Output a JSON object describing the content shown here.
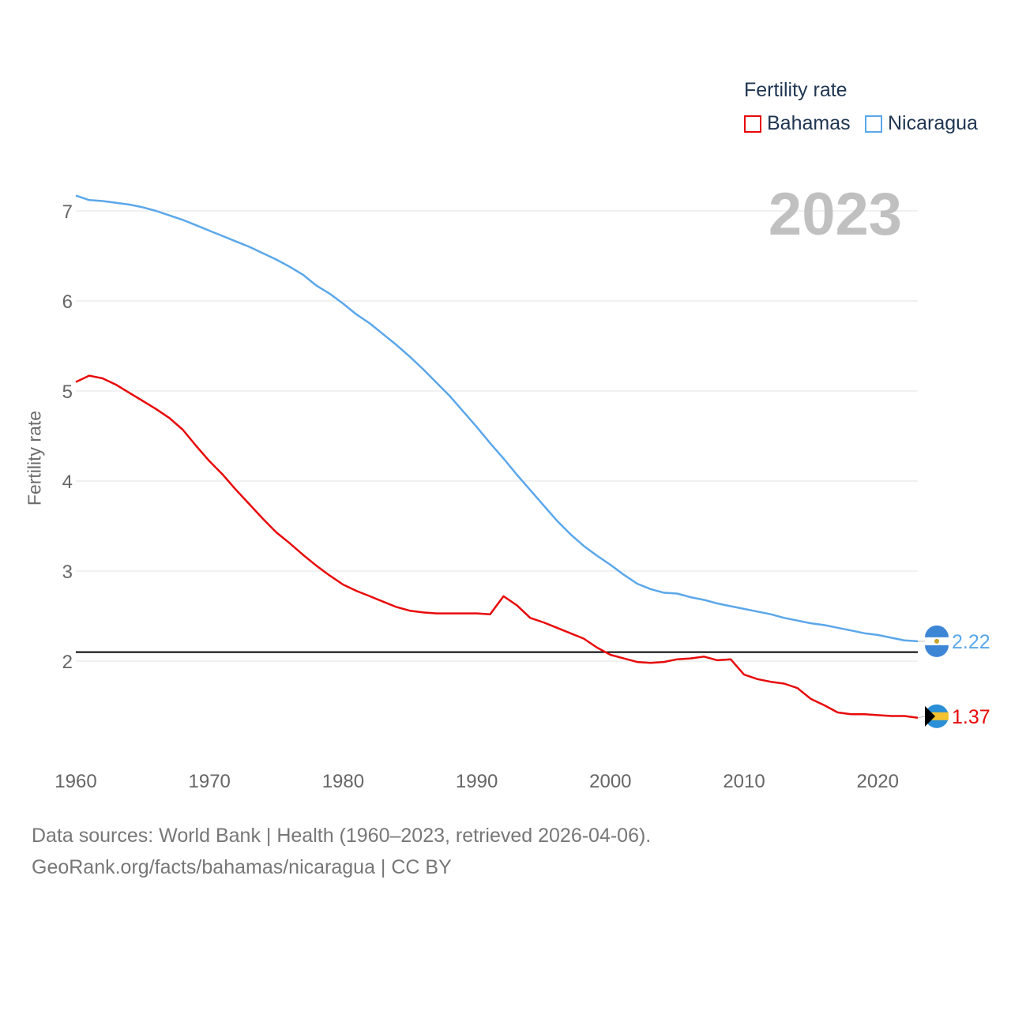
{
  "legend": {
    "title": "Fertility rate",
    "items": [
      {
        "label": "Bahamas",
        "color": "#e8090a"
      },
      {
        "label": "Nicaragua",
        "color": "#5ba7ea"
      }
    ]
  },
  "year_label": "2023",
  "y_axis_title": "Fertility rate",
  "footer": {
    "line1": "Data sources: World Bank | Health (1960–2023, retrieved 2026-04-06).",
    "line2": "GeoRank.org/facts/bahamas/nicaragua | CC BY"
  },
  "chart_data": {
    "type": "line",
    "title": "Fertility rate",
    "xlabel": "",
    "ylabel": "Fertility rate",
    "xlim": [
      1960,
      2023
    ],
    "ylim": [
      1.0,
      7.4
    ],
    "x_ticks": [
      1960,
      1970,
      1980,
      1990,
      2000,
      2010,
      2020
    ],
    "y_ticks": [
      2,
      3,
      4,
      5,
      6,
      7
    ],
    "grid": true,
    "legend_position": "top-right",
    "reference_line": {
      "y": 2.1,
      "color": "#000000"
    },
    "x": [
      1960,
      1961,
      1962,
      1963,
      1964,
      1965,
      1966,
      1967,
      1968,
      1969,
      1970,
      1971,
      1972,
      1973,
      1974,
      1975,
      1976,
      1977,
      1978,
      1979,
      1980,
      1981,
      1982,
      1983,
      1984,
      1985,
      1986,
      1987,
      1988,
      1989,
      1990,
      1991,
      1992,
      1993,
      1994,
      1995,
      1996,
      1997,
      1998,
      1999,
      2000,
      2001,
      2002,
      2003,
      2004,
      2005,
      2006,
      2007,
      2008,
      2009,
      2010,
      2011,
      2012,
      2013,
      2014,
      2015,
      2016,
      2017,
      2018,
      2019,
      2020,
      2021,
      2022,
      2023
    ],
    "series": [
      {
        "name": "Bahamas",
        "color": "#e8090a",
        "end_label": "1.37",
        "values": [
          5.1,
          5.17,
          5.14,
          5.07,
          4.98,
          4.89,
          4.8,
          4.7,
          4.57,
          4.39,
          4.22,
          4.07,
          3.9,
          3.74,
          3.58,
          3.43,
          3.31,
          3.18,
          3.06,
          2.95,
          2.85,
          2.78,
          2.72,
          2.66,
          2.6,
          2.56,
          2.54,
          2.53,
          2.53,
          2.53,
          2.53,
          2.52,
          2.72,
          2.62,
          2.48,
          2.43,
          2.37,
          2.31,
          2.25,
          2.15,
          2.07,
          2.03,
          1.99,
          1.98,
          1.99,
          2.02,
          2.03,
          2.05,
          2.01,
          2.02,
          1.85,
          1.8,
          1.77,
          1.75,
          1.7,
          1.58,
          1.51,
          1.43,
          1.41,
          1.41,
          1.4,
          1.39,
          1.39,
          1.37
        ]
      },
      {
        "name": "Nicaragua",
        "color": "#5ba7ea",
        "end_label": "2.22",
        "values": [
          7.17,
          7.12,
          7.11,
          7.09,
          7.07,
          7.04,
          7.0,
          6.95,
          6.9,
          6.84,
          6.78,
          6.72,
          6.66,
          6.6,
          6.53,
          6.46,
          6.38,
          6.29,
          6.17,
          6.08,
          5.97,
          5.85,
          5.75,
          5.63,
          5.51,
          5.38,
          5.24,
          5.09,
          4.94,
          4.77,
          4.6,
          4.42,
          4.25,
          4.07,
          3.9,
          3.73,
          3.56,
          3.41,
          3.28,
          3.17,
          3.07,
          2.96,
          2.86,
          2.8,
          2.76,
          2.75,
          2.71,
          2.68,
          2.64,
          2.61,
          2.58,
          2.55,
          2.52,
          2.48,
          2.45,
          2.42,
          2.4,
          2.37,
          2.34,
          2.31,
          2.29,
          2.26,
          2.23,
          2.22
        ]
      }
    ]
  }
}
